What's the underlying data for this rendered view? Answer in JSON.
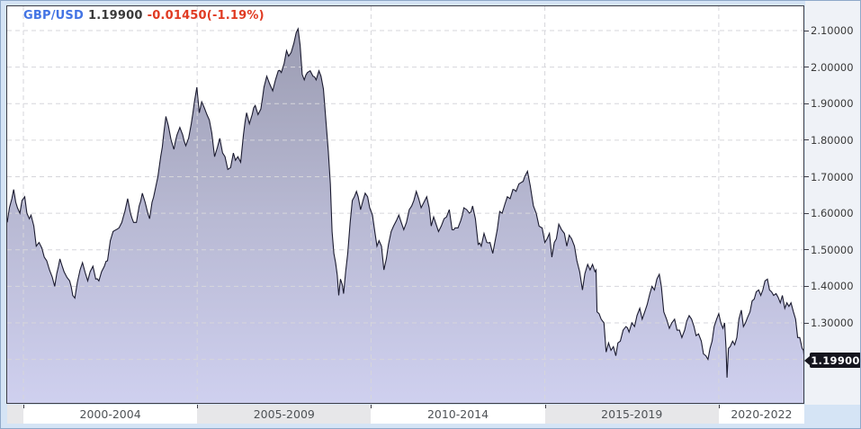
{
  "header": {
    "symbol": "GBP/USD",
    "price": "1.19900",
    "change": "-0.01450(-1.19%)"
  },
  "colors": {
    "symbol_blue": "#4374e4",
    "change_red": "#e03a22",
    "line": "#1b1b30",
    "area_top": "#9b9cb2",
    "area_mid": "#b8b9d3",
    "area_bottom": "#cfd0ef",
    "grid": "#d6d6db",
    "plot_border": "#3d3d46",
    "frame_background": "#d5e4f5",
    "axis_strip_background": "#eff2f7",
    "band_shade": "#e7e7e9",
    "badge_background": "#15151d",
    "badge_text": "#ffffff"
  },
  "y_axis": {
    "labels": [
      {
        "text": "2.10000",
        "value": 2.1
      },
      {
        "text": "2.00000",
        "value": 2.0
      },
      {
        "text": "1.90000",
        "value": 1.9
      },
      {
        "text": "1.80000",
        "value": 1.8
      },
      {
        "text": "1.70000",
        "value": 1.7
      },
      {
        "text": "1.60000",
        "value": 1.6
      },
      {
        "text": "1.50000",
        "value": 1.5
      },
      {
        "text": "1.40000",
        "value": 1.4
      },
      {
        "text": "1.30000",
        "value": 1.3
      }
    ],
    "price_badge": {
      "text": "1.19900",
      "value": 1.199
    }
  },
  "x_axis": {
    "bands": [
      {
        "label": "",
        "start": 1999.53,
        "end": 2000,
        "shade": true
      },
      {
        "label": "2000-2004",
        "start": 2000,
        "end": 2005,
        "shade": false
      },
      {
        "label": "2005-2009",
        "start": 2005,
        "end": 2010,
        "shade": true
      },
      {
        "label": "2010-2014",
        "start": 2010,
        "end": 2015,
        "shade": false
      },
      {
        "label": "2015-2019",
        "start": 2015,
        "end": 2020,
        "shade": true
      },
      {
        "label": "2020-2022",
        "start": 2020,
        "end": 2022.49,
        "shade": false
      }
    ],
    "boundary_years": [
      2000,
      2005,
      2010,
      2015,
      2020
    ]
  },
  "chart_data": {
    "type": "area",
    "title": "GBP/USD exchange rate, mid-1999 to mid-2022",
    "x_unit": "decimal_year",
    "x_range": [
      1999.53,
      2022.49
    ],
    "y_range_visible": [
      1.08,
      2.17
    ],
    "current_price": 1.199,
    "gridlines_y": [
      1.2,
      1.3,
      1.4,
      1.5,
      1.6,
      1.7,
      1.8,
      1.9,
      2.0,
      2.1
    ],
    "gridlines_x_years": [
      2000,
      2005,
      2010,
      2015,
      2020
    ],
    "legend": "none",
    "noise_amplitude": 0.007,
    "points": [
      [
        1999.53,
        1.575
      ],
      [
        1999.6,
        1.615
      ],
      [
        1999.67,
        1.64
      ],
      [
        1999.72,
        1.665
      ],
      [
        1999.78,
        1.63
      ],
      [
        1999.83,
        1.615
      ],
      [
        1999.9,
        1.6
      ],
      [
        1999.96,
        1.635
      ],
      [
        2000.04,
        1.645
      ],
      [
        2000.1,
        1.6
      ],
      [
        2000.17,
        1.585
      ],
      [
        2000.22,
        1.595
      ],
      [
        2000.3,
        1.565
      ],
      [
        2000.37,
        1.51
      ],
      [
        2000.45,
        1.52
      ],
      [
        2000.53,
        1.505
      ],
      [
        2000.6,
        1.48
      ],
      [
        2000.67,
        1.47
      ],
      [
        2000.75,
        1.445
      ],
      [
        2000.83,
        1.425
      ],
      [
        2000.9,
        1.4
      ],
      [
        2000.96,
        1.435
      ],
      [
        2001.05,
        1.475
      ],
      [
        2001.1,
        1.46
      ],
      [
        2001.17,
        1.44
      ],
      [
        2001.25,
        1.425
      ],
      [
        2001.33,
        1.415
      ],
      [
        2001.42,
        1.375
      ],
      [
        2001.48,
        1.368
      ],
      [
        2001.55,
        1.41
      ],
      [
        2001.63,
        1.445
      ],
      [
        2001.7,
        1.465
      ],
      [
        2001.77,
        1.44
      ],
      [
        2001.85,
        1.415
      ],
      [
        2001.92,
        1.44
      ],
      [
        2002.0,
        1.455
      ],
      [
        2002.08,
        1.42
      ],
      [
        2002.17,
        1.415
      ],
      [
        2002.25,
        1.44
      ],
      [
        2002.33,
        1.455
      ],
      [
        2002.42,
        1.47
      ],
      [
        2002.5,
        1.525
      ],
      [
        2002.58,
        1.55
      ],
      [
        2002.67,
        1.555
      ],
      [
        2002.75,
        1.56
      ],
      [
        2002.83,
        1.575
      ],
      [
        2002.92,
        1.605
      ],
      [
        2003.0,
        1.64
      ],
      [
        2003.08,
        1.6
      ],
      [
        2003.17,
        1.575
      ],
      [
        2003.25,
        1.575
      ],
      [
        2003.33,
        1.62
      ],
      [
        2003.42,
        1.655
      ],
      [
        2003.5,
        1.63
      ],
      [
        2003.58,
        1.6
      ],
      [
        2003.63,
        1.585
      ],
      [
        2003.7,
        1.63
      ],
      [
        2003.79,
        1.665
      ],
      [
        2003.87,
        1.7
      ],
      [
        2003.95,
        1.755
      ],
      [
        2004.04,
        1.82
      ],
      [
        2004.1,
        1.865
      ],
      [
        2004.17,
        1.84
      ],
      [
        2004.25,
        1.8
      ],
      [
        2004.33,
        1.775
      ],
      [
        2004.42,
        1.815
      ],
      [
        2004.5,
        1.835
      ],
      [
        2004.58,
        1.815
      ],
      [
        2004.67,
        1.785
      ],
      [
        2004.75,
        1.805
      ],
      [
        2004.83,
        1.845
      ],
      [
        2004.92,
        1.905
      ],
      [
        2004.99,
        1.945
      ],
      [
        2005.06,
        1.875
      ],
      [
        2005.13,
        1.905
      ],
      [
        2005.2,
        1.89
      ],
      [
        2005.28,
        1.87
      ],
      [
        2005.35,
        1.855
      ],
      [
        2005.42,
        1.82
      ],
      [
        2005.5,
        1.755
      ],
      [
        2005.58,
        1.78
      ],
      [
        2005.65,
        1.805
      ],
      [
        2005.73,
        1.765
      ],
      [
        2005.8,
        1.755
      ],
      [
        2005.88,
        1.72
      ],
      [
        2005.96,
        1.725
      ],
      [
        2006.04,
        1.765
      ],
      [
        2006.1,
        1.745
      ],
      [
        2006.17,
        1.755
      ],
      [
        2006.25,
        1.74
      ],
      [
        2006.33,
        1.815
      ],
      [
        2006.42,
        1.875
      ],
      [
        2006.5,
        1.845
      ],
      [
        2006.58,
        1.87
      ],
      [
        2006.67,
        1.895
      ],
      [
        2006.75,
        1.87
      ],
      [
        2006.83,
        1.885
      ],
      [
        2006.92,
        1.945
      ],
      [
        2007.0,
        1.975
      ],
      [
        2007.08,
        1.955
      ],
      [
        2007.17,
        1.935
      ],
      [
        2007.25,
        1.965
      ],
      [
        2007.33,
        1.99
      ],
      [
        2007.42,
        1.985
      ],
      [
        2007.5,
        2.01
      ],
      [
        2007.57,
        2.045
      ],
      [
        2007.63,
        2.03
      ],
      [
        2007.7,
        2.04
      ],
      [
        2007.78,
        2.065
      ],
      [
        2007.85,
        2.095
      ],
      [
        2007.9,
        2.105
      ],
      [
        2007.96,
        2.06
      ],
      [
        2008.02,
        1.98
      ],
      [
        2008.08,
        1.965
      ],
      [
        2008.17,
        1.985
      ],
      [
        2008.25,
        1.99
      ],
      [
        2008.33,
        1.975
      ],
      [
        2008.42,
        1.965
      ],
      [
        2008.5,
        1.99
      ],
      [
        2008.56,
        1.975
      ],
      [
        2008.63,
        1.94
      ],
      [
        2008.7,
        1.855
      ],
      [
        2008.77,
        1.77
      ],
      [
        2008.83,
        1.68
      ],
      [
        2008.88,
        1.55
      ],
      [
        2008.93,
        1.49
      ],
      [
        2008.98,
        1.465
      ],
      [
        2009.03,
        1.43
      ],
      [
        2009.07,
        1.375
      ],
      [
        2009.12,
        1.42
      ],
      [
        2009.17,
        1.405
      ],
      [
        2009.21,
        1.38
      ],
      [
        2009.27,
        1.44
      ],
      [
        2009.33,
        1.49
      ],
      [
        2009.4,
        1.575
      ],
      [
        2009.46,
        1.635
      ],
      [
        2009.52,
        1.645
      ],
      [
        2009.58,
        1.66
      ],
      [
        2009.63,
        1.645
      ],
      [
        2009.7,
        1.61
      ],
      [
        2009.77,
        1.635
      ],
      [
        2009.83,
        1.655
      ],
      [
        2009.9,
        1.645
      ],
      [
        2009.96,
        1.615
      ],
      [
        2010.04,
        1.595
      ],
      [
        2010.1,
        1.555
      ],
      [
        2010.17,
        1.51
      ],
      [
        2010.23,
        1.525
      ],
      [
        2010.3,
        1.51
      ],
      [
        2010.37,
        1.445
      ],
      [
        2010.44,
        1.475
      ],
      [
        2010.5,
        1.515
      ],
      [
        2010.58,
        1.55
      ],
      [
        2010.65,
        1.565
      ],
      [
        2010.73,
        1.58
      ],
      [
        2010.8,
        1.595
      ],
      [
        2010.87,
        1.575
      ],
      [
        2010.94,
        1.555
      ],
      [
        2011.02,
        1.575
      ],
      [
        2011.1,
        1.61
      ],
      [
        2011.17,
        1.62
      ],
      [
        2011.23,
        1.635
      ],
      [
        2011.3,
        1.66
      ],
      [
        2011.37,
        1.64
      ],
      [
        2011.44,
        1.615
      ],
      [
        2011.52,
        1.63
      ],
      [
        2011.6,
        1.645
      ],
      [
        2011.67,
        1.615
      ],
      [
        2011.73,
        1.565
      ],
      [
        2011.8,
        1.59
      ],
      [
        2011.87,
        1.57
      ],
      [
        2011.94,
        1.55
      ],
      [
        2012.02,
        1.565
      ],
      [
        2012.1,
        1.585
      ],
      [
        2012.17,
        1.59
      ],
      [
        2012.25,
        1.61
      ],
      [
        2012.33,
        1.555
      ],
      [
        2012.42,
        1.56
      ],
      [
        2012.5,
        1.56
      ],
      [
        2012.58,
        1.58
      ],
      [
        2012.67,
        1.615
      ],
      [
        2012.75,
        1.61
      ],
      [
        2012.83,
        1.6
      ],
      [
        2012.92,
        1.62
      ],
      [
        2013.0,
        1.585
      ],
      [
        2013.08,
        1.515
      ],
      [
        2013.17,
        1.51
      ],
      [
        2013.25,
        1.545
      ],
      [
        2013.33,
        1.52
      ],
      [
        2013.42,
        1.52
      ],
      [
        2013.5,
        1.49
      ],
      [
        2013.56,
        1.52
      ],
      [
        2013.63,
        1.555
      ],
      [
        2013.7,
        1.605
      ],
      [
        2013.77,
        1.6
      ],
      [
        2013.85,
        1.625
      ],
      [
        2013.92,
        1.645
      ],
      [
        2014.0,
        1.64
      ],
      [
        2014.08,
        1.665
      ],
      [
        2014.17,
        1.66
      ],
      [
        2014.25,
        1.68
      ],
      [
        2014.33,
        1.685
      ],
      [
        2014.42,
        1.7
      ],
      [
        2014.5,
        1.715
      ],
      [
        2014.58,
        1.675
      ],
      [
        2014.67,
        1.62
      ],
      [
        2014.75,
        1.6
      ],
      [
        2014.83,
        1.565
      ],
      [
        2014.92,
        1.56
      ],
      [
        2015.0,
        1.52
      ],
      [
        2015.06,
        1.53
      ],
      [
        2015.13,
        1.545
      ],
      [
        2015.2,
        1.48
      ],
      [
        2015.27,
        1.52
      ],
      [
        2015.33,
        1.53
      ],
      [
        2015.4,
        1.57
      ],
      [
        2015.48,
        1.555
      ],
      [
        2015.56,
        1.545
      ],
      [
        2015.63,
        1.51
      ],
      [
        2015.7,
        1.54
      ],
      [
        2015.77,
        1.53
      ],
      [
        2015.85,
        1.51
      ],
      [
        2015.92,
        1.47
      ],
      [
        2016.0,
        1.44
      ],
      [
        2016.08,
        1.39
      ],
      [
        2016.15,
        1.435
      ],
      [
        2016.23,
        1.46
      ],
      [
        2016.3,
        1.445
      ],
      [
        2016.37,
        1.46
      ],
      [
        2016.44,
        1.44
      ],
      [
        2016.47,
        1.445
      ],
      [
        2016.5,
        1.33
      ],
      [
        2016.56,
        1.325
      ],
      [
        2016.62,
        1.31
      ],
      [
        2016.7,
        1.3
      ],
      [
        2016.76,
        1.22
      ],
      [
        2016.83,
        1.245
      ],
      [
        2016.9,
        1.225
      ],
      [
        2016.97,
        1.235
      ],
      [
        2017.04,
        1.21
      ],
      [
        2017.1,
        1.245
      ],
      [
        2017.17,
        1.25
      ],
      [
        2017.25,
        1.28
      ],
      [
        2017.33,
        1.29
      ],
      [
        2017.42,
        1.275
      ],
      [
        2017.5,
        1.3
      ],
      [
        2017.58,
        1.29
      ],
      [
        2017.65,
        1.32
      ],
      [
        2017.73,
        1.34
      ],
      [
        2017.8,
        1.31
      ],
      [
        2017.87,
        1.33
      ],
      [
        2017.94,
        1.35
      ],
      [
        2018.02,
        1.38
      ],
      [
        2018.08,
        1.4
      ],
      [
        2018.15,
        1.39
      ],
      [
        2018.22,
        1.42
      ],
      [
        2018.29,
        1.433
      ],
      [
        2018.35,
        1.4
      ],
      [
        2018.42,
        1.33
      ],
      [
        2018.5,
        1.31
      ],
      [
        2018.58,
        1.285
      ],
      [
        2018.65,
        1.3
      ],
      [
        2018.73,
        1.31
      ],
      [
        2018.8,
        1.28
      ],
      [
        2018.87,
        1.28
      ],
      [
        2018.94,
        1.26
      ],
      [
        2019.02,
        1.28
      ],
      [
        2019.08,
        1.305
      ],
      [
        2019.15,
        1.32
      ],
      [
        2019.22,
        1.31
      ],
      [
        2019.29,
        1.29
      ],
      [
        2019.35,
        1.265
      ],
      [
        2019.42,
        1.27
      ],
      [
        2019.5,
        1.25
      ],
      [
        2019.56,
        1.215
      ],
      [
        2019.63,
        1.21
      ],
      [
        2019.69,
        1.2
      ],
      [
        2019.75,
        1.23
      ],
      [
        2019.81,
        1.25
      ],
      [
        2019.87,
        1.29
      ],
      [
        2019.94,
        1.31
      ],
      [
        2020.0,
        1.325
      ],
      [
        2020.06,
        1.3
      ],
      [
        2020.12,
        1.285
      ],
      [
        2020.17,
        1.3
      ],
      [
        2020.21,
        1.23
      ],
      [
        2020.24,
        1.15
      ],
      [
        2020.28,
        1.23
      ],
      [
        2020.33,
        1.235
      ],
      [
        2020.4,
        1.25
      ],
      [
        2020.46,
        1.24
      ],
      [
        2020.52,
        1.26
      ],
      [
        2020.58,
        1.31
      ],
      [
        2020.65,
        1.335
      ],
      [
        2020.71,
        1.29
      ],
      [
        2020.77,
        1.3
      ],
      [
        2020.83,
        1.315
      ],
      [
        2020.9,
        1.33
      ],
      [
        2020.96,
        1.36
      ],
      [
        2021.02,
        1.365
      ],
      [
        2021.08,
        1.385
      ],
      [
        2021.15,
        1.39
      ],
      [
        2021.21,
        1.375
      ],
      [
        2021.27,
        1.39
      ],
      [
        2021.33,
        1.415
      ],
      [
        2021.4,
        1.42
      ],
      [
        2021.46,
        1.39
      ],
      [
        2021.52,
        1.385
      ],
      [
        2021.58,
        1.375
      ],
      [
        2021.65,
        1.38
      ],
      [
        2021.71,
        1.37
      ],
      [
        2021.77,
        1.355
      ],
      [
        2021.83,
        1.375
      ],
      [
        2021.9,
        1.34
      ],
      [
        2021.96,
        1.355
      ],
      [
        2022.02,
        1.345
      ],
      [
        2022.08,
        1.355
      ],
      [
        2022.15,
        1.33
      ],
      [
        2022.21,
        1.31
      ],
      [
        2022.27,
        1.26
      ],
      [
        2022.33,
        1.26
      ],
      [
        2022.4,
        1.23
      ],
      [
        2022.44,
        1.225
      ],
      [
        2022.49,
        1.199
      ]
    ]
  }
}
